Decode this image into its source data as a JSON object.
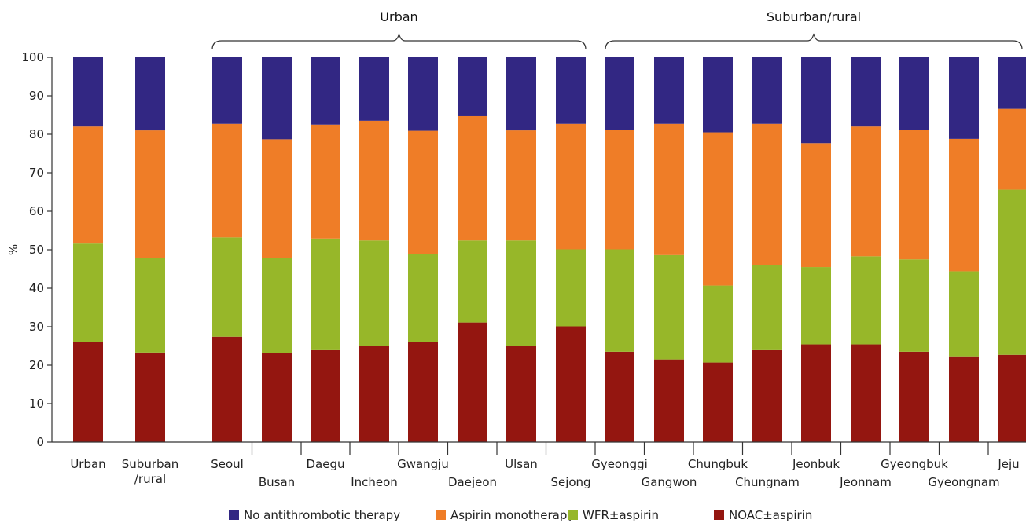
{
  "chart_data": {
    "type": "bar",
    "stacked": true,
    "ylabel": "%",
    "ylim": [
      0,
      100
    ],
    "yticks": [
      0,
      10,
      20,
      30,
      40,
      50,
      60,
      70,
      80,
      90,
      100
    ],
    "grid": false,
    "legend_position": "bottom",
    "categories": [
      "Urban",
      "Suburban/rural",
      "Seoul",
      "Busan",
      "Daegu",
      "Incheon",
      "Gwangju",
      "Daejeon",
      "Ulsan",
      "Sejong",
      "Gyeonggi",
      "Gangwon",
      "Chungbuk",
      "Chungnam",
      "Jeonbuk",
      "Jeonnam",
      "Gyeongbuk",
      "Gyeongnam",
      "Jeju"
    ],
    "category_labels": [
      [
        "Urban"
      ],
      [
        "Suburban",
        "/rural"
      ],
      [
        "Seoul"
      ],
      [
        "Busan"
      ],
      [
        "Daegu"
      ],
      [
        "Incheon"
      ],
      [
        "Gwangju"
      ],
      [
        "Daejeon"
      ],
      [
        "Ulsan"
      ],
      [
        "Sejong"
      ],
      [
        "Gyeonggi"
      ],
      [
        "Gangwon"
      ],
      [
        "Chungbuk"
      ],
      [
        "Chungnam"
      ],
      [
        "Jeonbuk"
      ],
      [
        "Jeonnam"
      ],
      [
        "Gyeongbuk"
      ],
      [
        "Gyeongnam"
      ],
      [
        "Jeju"
      ]
    ],
    "groups": [
      {
        "label": "Urban",
        "categories": [
          "Seoul",
          "Busan",
          "Daegu",
          "Incheon",
          "Gwangju",
          "Daejeon",
          "Ulsan",
          "Sejong"
        ]
      },
      {
        "label": "Suburban/rural",
        "categories": [
          "Gyeonggi",
          "Gangwon",
          "Chungbuk",
          "Chungnam",
          "Jeonbuk",
          "Jeonnam",
          "Gyeongbuk",
          "Gyeongnam",
          "Jeju"
        ]
      }
    ],
    "series": [
      {
        "name": "NOAC±aspirin",
        "color": "#941610",
        "values": [
          26,
          23.3,
          27.4,
          23.1,
          23.9,
          25,
          26,
          31.1,
          25,
          30.1,
          23.5,
          21.5,
          20.7,
          23.9,
          25.4,
          25.4,
          23.5,
          22.3,
          22.7
        ]
      },
      {
        "name": "WFR±aspirin",
        "color": "#97b729",
        "values": [
          25.6,
          24.6,
          25.8,
          24.8,
          29.0,
          27.4,
          22.8,
          21.3,
          27.4,
          20.0,
          26.6,
          27.1,
          20.0,
          22.1,
          20.1,
          22.9,
          24.0,
          22.1,
          42.9
        ]
      },
      {
        "name": "Aspirin monotherapy",
        "color": "#ef7d27",
        "values": [
          30.4,
          33.1,
          29.5,
          30.8,
          29.6,
          31.1,
          32.1,
          32.3,
          28.6,
          32.6,
          31.0,
          34.1,
          39.8,
          36.7,
          32.2,
          33.7,
          33.6,
          34.4,
          21.0
        ]
      },
      {
        "name": "No antithrombotic therapy",
        "color": "#322783",
        "values": [
          18,
          19,
          17.3,
          21.3,
          17.5,
          16.5,
          19.1,
          15.3,
          19,
          17.3,
          18.9,
          17.3,
          19.5,
          17.3,
          22.3,
          18,
          18.9,
          21.2,
          13.4
        ]
      }
    ],
    "legend_order": [
      "No antithrombotic therapy",
      "Aspirin monotherapy",
      "WFR±aspirin",
      "NOAC±aspirin"
    ]
  }
}
